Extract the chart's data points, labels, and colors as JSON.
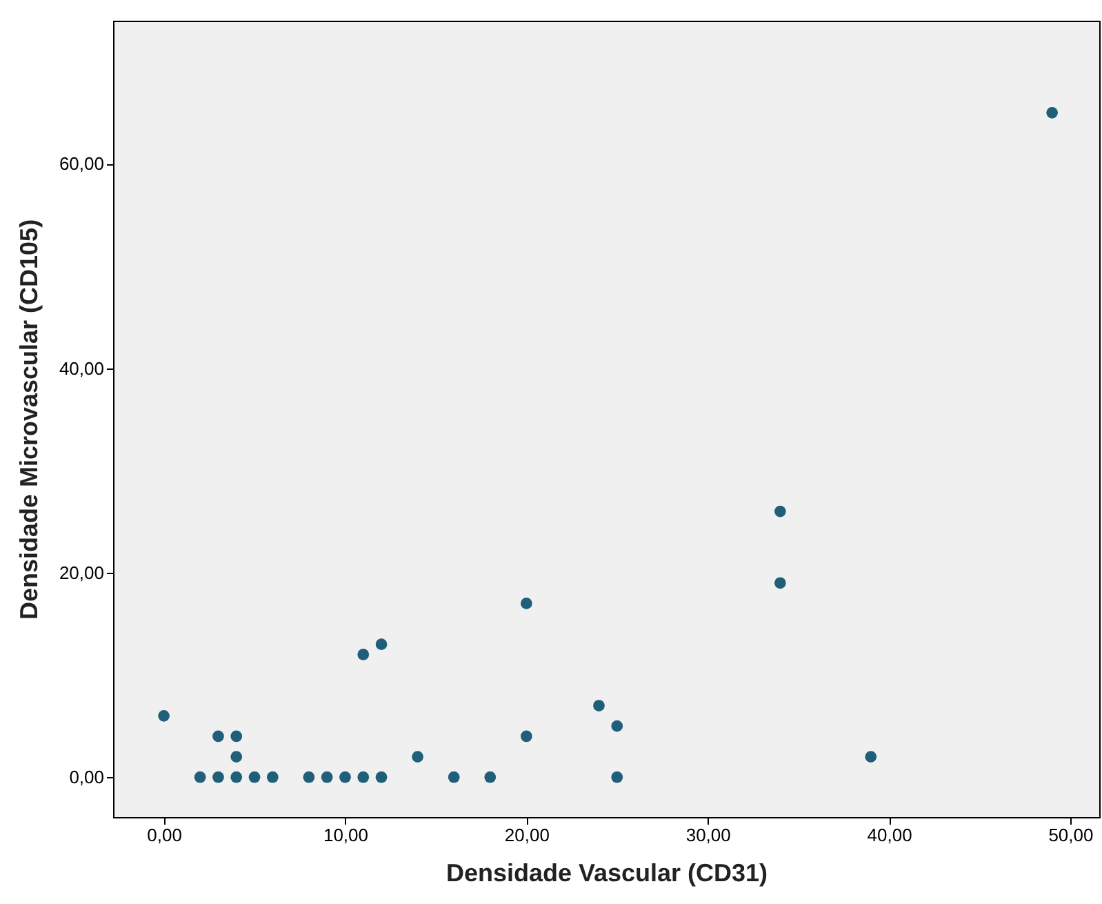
{
  "chart_data": {
    "type": "scatter",
    "xlabel": "Densidade Vascular (CD31)",
    "ylabel": "Densidade Microvascular (CD105)",
    "x": [
      0,
      2,
      3,
      3,
      4,
      4,
      4,
      5,
      6,
      8,
      9,
      10,
      11,
      11,
      12,
      12,
      14,
      16,
      18,
      20,
      20,
      24,
      25,
      25,
      34,
      34,
      39,
      49
    ],
    "series": [
      {
        "color": "#1f5f7a",
        "values": [
          6,
          0,
          0,
          4,
          4,
          2,
          0,
          0,
          0,
          0,
          0,
          0,
          0,
          12,
          13,
          0,
          2,
          0,
          0,
          17,
          4,
          7,
          5,
          0,
          26,
          19,
          2,
          65
        ]
      }
    ],
    "xlim": [
      -2.8,
      51.6
    ],
    "ylim": [
      -3.9,
      74
    ],
    "xticks": [
      {
        "value": 0,
        "label": "0,00"
      },
      {
        "value": 10,
        "label": "10,00"
      },
      {
        "value": 20,
        "label": "20,00"
      },
      {
        "value": 30,
        "label": "30,00"
      },
      {
        "value": 40,
        "label": "40,00"
      },
      {
        "value": 50,
        "label": "50,00"
      }
    ],
    "yticks": [
      {
        "value": 0,
        "label": "0,00"
      },
      {
        "value": 20,
        "label": "20,00"
      },
      {
        "value": 40,
        "label": "40,00"
      },
      {
        "value": 60,
        "label": "60,00"
      }
    ],
    "grid": false,
    "marker": "circle"
  }
}
